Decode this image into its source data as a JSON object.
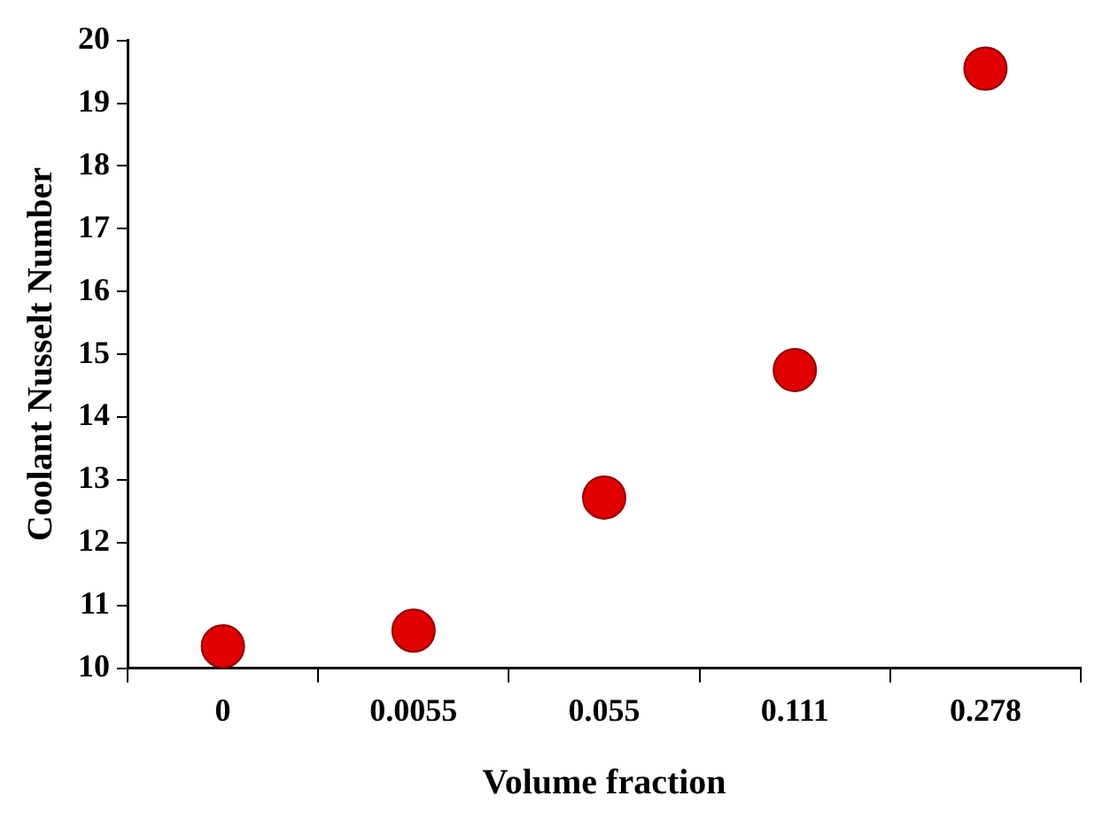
{
  "chart_data": {
    "type": "scatter",
    "xlabel": "Volume fraction",
    "ylabel": "Coolant Nusselt Number",
    "categories": [
      "0",
      "0.0055",
      "0.055",
      "0.111",
      "0.278"
    ],
    "values": [
      10.35,
      10.6,
      12.72,
      14.75,
      19.55
    ],
    "color": "#e00000",
    "marker": "circle",
    "ylim": [
      10,
      20
    ],
    "yticks": [
      10,
      11,
      12,
      13,
      14,
      15,
      16,
      17,
      18,
      19,
      20
    ],
    "grid": false,
    "legend": false
  }
}
